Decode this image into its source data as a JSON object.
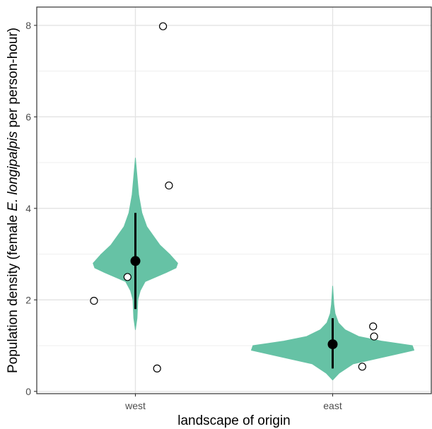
{
  "chart_data": {
    "type": "violin",
    "xlabel": "landscape of origin",
    "ylabel_parts": [
      "Population density (female ",
      "E. longipalpis",
      " per person-hour)"
    ],
    "categories": [
      "west",
      "east"
    ],
    "ylim": [
      -0.05,
      8.4
    ],
    "yticks": [
      0,
      2,
      4,
      6,
      8
    ],
    "grid": true,
    "colors": {
      "violin": "#66c2a5",
      "point": "#000000",
      "raw_point_fill": "#ffffff",
      "grid": "#e3e3e3",
      "border": "#333333"
    },
    "violins": [
      {
        "category": "west",
        "profile": [
          [
            1.35,
            0.0
          ],
          [
            1.6,
            0.02
          ],
          [
            2.0,
            0.03
          ],
          [
            2.2,
            0.06
          ],
          [
            2.4,
            0.12
          ],
          [
            2.6,
            0.38
          ],
          [
            2.7,
            0.5
          ],
          [
            2.8,
            0.52
          ],
          [
            3.0,
            0.42
          ],
          [
            3.2,
            0.3
          ],
          [
            3.4,
            0.22
          ],
          [
            3.6,
            0.14
          ],
          [
            3.9,
            0.08
          ],
          [
            4.3,
            0.04
          ],
          [
            4.7,
            0.02
          ],
          [
            5.1,
            0.0
          ]
        ],
        "mean": 2.85,
        "interval": [
          1.8,
          3.9
        ]
      },
      {
        "category": "east",
        "profile": [
          [
            0.25,
            0.0
          ],
          [
            0.4,
            0.08
          ],
          [
            0.6,
            0.25
          ],
          [
            0.8,
            0.75
          ],
          [
            0.9,
            1.0
          ],
          [
            1.0,
            0.98
          ],
          [
            1.1,
            0.6
          ],
          [
            1.2,
            0.32
          ],
          [
            1.35,
            0.15
          ],
          [
            1.5,
            0.07
          ],
          [
            1.7,
            0.03
          ],
          [
            1.9,
            0.015
          ],
          [
            2.3,
            0.0
          ]
        ],
        "mean": 1.03,
        "interval": [
          0.5,
          1.6
        ]
      }
    ],
    "raw_points": [
      {
        "category": "west",
        "jitter": 0.28,
        "y": 7.98
      },
      {
        "category": "west",
        "jitter": 0.34,
        "y": 4.5
      },
      {
        "category": "west",
        "jitter": -0.08,
        "y": 2.5
      },
      {
        "category": "west",
        "jitter": -0.42,
        "y": 1.98
      },
      {
        "category": "west",
        "jitter": 0.22,
        "y": 0.5
      },
      {
        "category": "east",
        "jitter": 0.41,
        "y": 1.42
      },
      {
        "category": "east",
        "jitter": 0.42,
        "y": 1.2
      },
      {
        "category": "east",
        "jitter": 0.3,
        "y": 0.54
      }
    ]
  }
}
